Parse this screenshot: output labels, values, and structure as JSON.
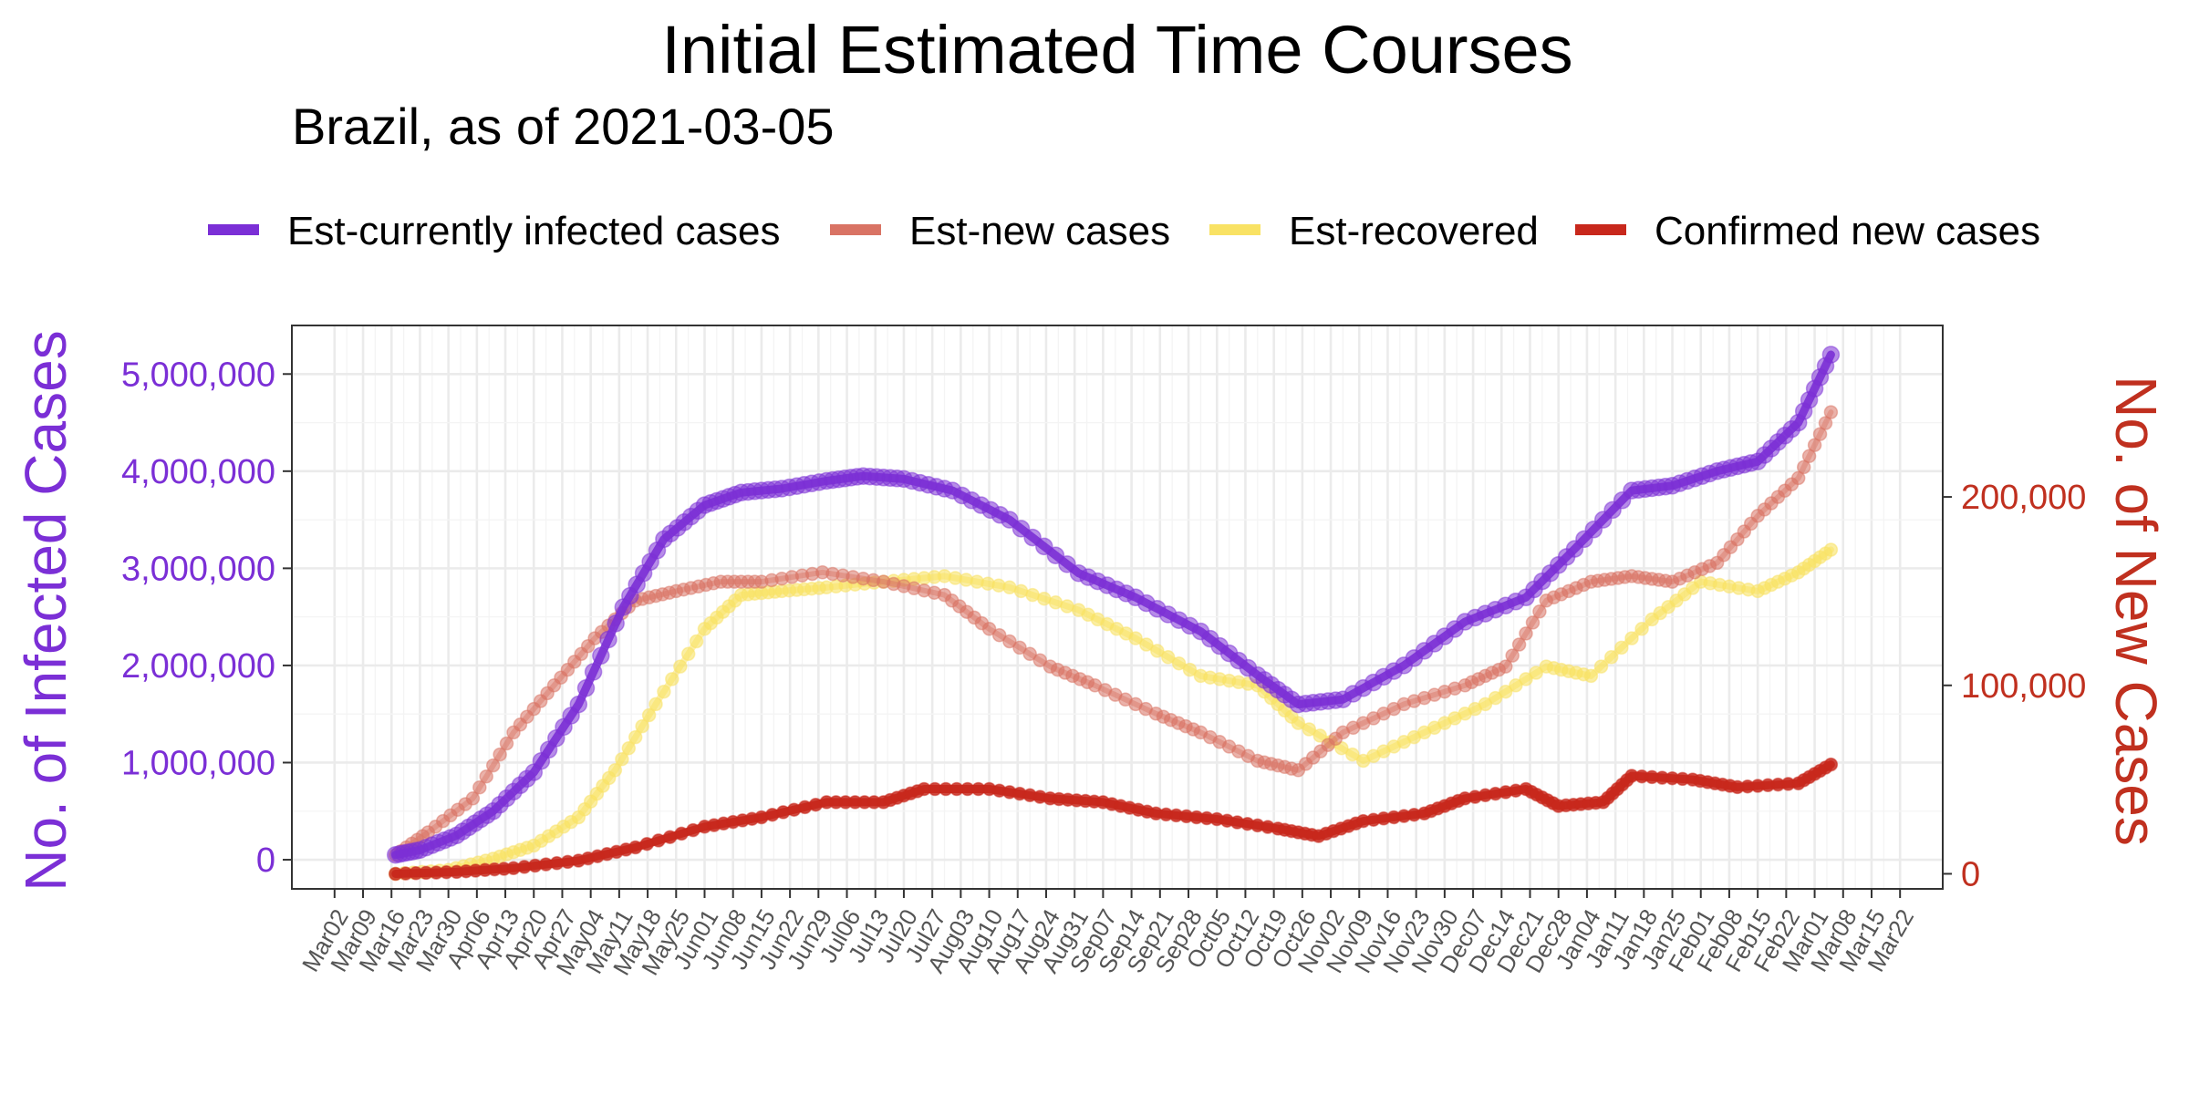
{
  "chart_data": {
    "type": "line",
    "title": "Initial Estimated Time Courses",
    "subtitle": "Brazil, as of 2021-03-05",
    "ylabel_left": "No. of Infected Cases",
    "ylabel_right": "No. of New Cases",
    "legend_position": "top",
    "grid": true,
    "x_range": [
      "2020-03-02",
      "2021-03-22"
    ],
    "x_tick_start": "2020-03-02",
    "x_ticks": [
      "Mar02",
      "Mar09",
      "Mar16",
      "Mar23",
      "Mar30",
      "Apr06",
      "Apr13",
      "Apr20",
      "Apr27",
      "May04",
      "May11",
      "May18",
      "May25",
      "Jun01",
      "Jun08",
      "Jun15",
      "Jun22",
      "Jun29",
      "Jul06",
      "Jul13",
      "Jul20",
      "Jul27",
      "Aug03",
      "Aug10",
      "Aug17",
      "Aug24",
      "Aug31",
      "Sep07",
      "Sep14",
      "Sep21",
      "Sep28",
      "Oct05",
      "Oct12",
      "Oct19",
      "Oct26",
      "Nov02",
      "Nov09",
      "Nov16",
      "Nov23",
      "Nov30",
      "Dec07",
      "Dec14",
      "Dec21",
      "Dec28",
      "Jan04",
      "Jan11",
      "Jan18",
      "Jan25",
      "Feb01",
      "Feb08",
      "Feb15",
      "Feb22",
      "Mar01",
      "Mar08",
      "Mar15",
      "Mar22"
    ],
    "y_left": {
      "ylim": [
        -300000,
        5500000
      ],
      "ticks": [
        0,
        1000000,
        2000000,
        3000000,
        4000000,
        5000000
      ],
      "tick_labels": [
        "0",
        "1,000,000",
        "2,000,000",
        "3,000,000",
        "4,000,000",
        "5,000,000"
      ]
    },
    "y_right": {
      "ylim": [
        -8000,
        291000
      ],
      "ticks": [
        0,
        100000,
        200000
      ],
      "tick_labels": [
        "0",
        "100,000",
        "200,000"
      ]
    },
    "series": [
      {
        "name": "Est-currently infected cases",
        "axis": "left",
        "color": "#7b2fd6",
        "x": [
          "2020-03-17",
          "2020-03-23",
          "2020-04-01",
          "2020-04-10",
          "2020-04-20",
          "2020-05-01",
          "2020-05-12",
          "2020-05-22",
          "2020-06-01",
          "2020-06-10",
          "2020-06-20",
          "2020-07-01",
          "2020-07-10",
          "2020-07-20",
          "2020-08-01",
          "2020-08-15",
          "2020-09-01",
          "2020-09-15",
          "2020-10-01",
          "2020-10-15",
          "2020-10-25",
          "2020-11-05",
          "2020-11-20",
          "2020-12-05",
          "2020-12-20",
          "2021-01-01",
          "2021-01-15",
          "2021-01-25",
          "2021-02-05",
          "2021-02-15",
          "2021-02-25",
          "2021-03-05"
        ],
        "values": [
          50000,
          100000,
          250000,
          500000,
          900000,
          1600000,
          2600000,
          3300000,
          3650000,
          3780000,
          3820000,
          3900000,
          3950000,
          3920000,
          3800000,
          3500000,
          2950000,
          2700000,
          2350000,
          1900000,
          1600000,
          1650000,
          2000000,
          2450000,
          2700000,
          3200000,
          3800000,
          3850000,
          4000000,
          4100000,
          4500000,
          5200000
        ]
      },
      {
        "name": "Est-new cases",
        "axis": "right",
        "color": "#d97364",
        "x": [
          "2020-03-17",
          "2020-03-25",
          "2020-04-05",
          "2020-04-15",
          "2020-04-25",
          "2020-05-05",
          "2020-05-15",
          "2020-05-25",
          "2020-06-05",
          "2020-06-15",
          "2020-06-30",
          "2020-07-15",
          "2020-07-30",
          "2020-08-10",
          "2020-08-25",
          "2020-09-05",
          "2020-09-20",
          "2020-10-01",
          "2020-10-15",
          "2020-10-25",
          "2020-11-05",
          "2020-11-20",
          "2020-12-05",
          "2020-12-15",
          "2020-12-25",
          "2021-01-05",
          "2021-01-15",
          "2021-01-25",
          "2021-02-05",
          "2021-02-15",
          "2021-02-25",
          "2021-03-05"
        ],
        "values": [
          10000,
          22000,
          40000,
          75000,
          100000,
          125000,
          145000,
          150000,
          155000,
          155000,
          160000,
          155000,
          148000,
          130000,
          110000,
          100000,
          85000,
          75000,
          60000,
          55000,
          75000,
          90000,
          100000,
          110000,
          145000,
          155000,
          158000,
          155000,
          165000,
          190000,
          210000,
          245000
        ]
      },
      {
        "name": "Est-recovered",
        "axis": "right",
        "color": "#f9e264",
        "x": [
          "2020-03-17",
          "2020-03-30",
          "2020-04-10",
          "2020-04-20",
          "2020-05-01",
          "2020-05-10",
          "2020-05-20",
          "2020-06-01",
          "2020-06-10",
          "2020-06-20",
          "2020-07-01",
          "2020-07-15",
          "2020-07-30",
          "2020-08-15",
          "2020-09-01",
          "2020-09-15",
          "2020-10-01",
          "2020-10-15",
          "2020-10-25",
          "2020-11-10",
          "2020-11-25",
          "2020-12-10",
          "2020-12-25",
          "2021-01-05",
          "2021-01-20",
          "2021-02-01",
          "2021-02-15",
          "2021-02-25",
          "2021-03-05"
        ],
        "values": [
          0,
          2000,
          8000,
          15000,
          30000,
          55000,
          90000,
          130000,
          148000,
          150000,
          152000,
          155000,
          158000,
          152000,
          140000,
          125000,
          105000,
          100000,
          80000,
          60000,
          75000,
          90000,
          110000,
          105000,
          135000,
          155000,
          150000,
          160000,
          172000
        ]
      },
      {
        "name": "Confirmed new cases",
        "axis": "right",
        "color": "#c8281c",
        "x": [
          "2020-03-17",
          "2020-04-01",
          "2020-04-15",
          "2020-05-01",
          "2020-05-15",
          "2020-06-01",
          "2020-06-15",
          "2020-07-01",
          "2020-07-15",
          "2020-07-25",
          "2020-08-10",
          "2020-08-25",
          "2020-09-07",
          "2020-09-20",
          "2020-10-05",
          "2020-10-20",
          "2020-10-30",
          "2020-11-10",
          "2020-11-25",
          "2020-12-05",
          "2020-12-20",
          "2020-12-28",
          "2021-01-08",
          "2021-01-15",
          "2021-01-30",
          "2021-02-10",
          "2021-02-25",
          "2021-03-05"
        ],
        "values": [
          0,
          1000,
          3000,
          7000,
          14000,
          25000,
          30000,
          38000,
          38000,
          45000,
          45000,
          40000,
          38000,
          32000,
          29000,
          24000,
          20000,
          28000,
          32000,
          40000,
          45000,
          36000,
          38000,
          52000,
          50000,
          46000,
          48000,
          58000
        ]
      }
    ]
  }
}
